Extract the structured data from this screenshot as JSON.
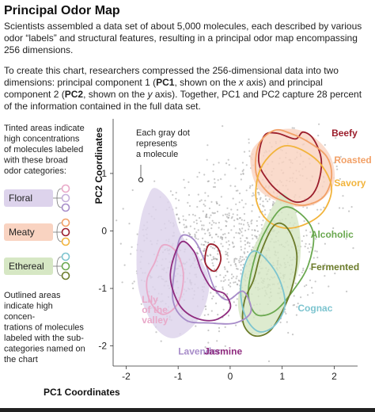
{
  "header": {
    "title": "Principal Odor Map",
    "intro": "Scientists assembled a data set of about 5,000 molecules, each described by various odor “labels” and structural features, resulting in a principal odor map encompassing 256 dimensions.",
    "desc_a": "To create this chart, researchers compressed the 256-dimensional data into two dimensions: principal component 1 (",
    "desc_b": "PC1",
    "desc_c": ", shown on the ",
    "desc_d": "x",
    "desc_e": " axis) and principal component 2 (",
    "desc_f": "PC2",
    "desc_g": ", shown on the ",
    "desc_h": "y",
    "desc_i": " axis). Together, PC1 and PC2 capture 28 percent of the information contained in the full data set."
  },
  "legend": {
    "tinted_note": [
      "Tinted areas indicate",
      "high concentrations",
      "of molecules labeled",
      "with these broad",
      "odor categories:"
    ],
    "outlined_note": [
      "Outlined areas",
      "indicate high",
      "concen-",
      "trations of molecules",
      "labeled with the sub-",
      "categories named on",
      "the chart"
    ],
    "categories": [
      {
        "name": "Floral",
        "color": "#ddd3ec",
        "sub_colors": [
          "#e9a9c9",
          "#c6b0dc",
          "#a78cc9"
        ]
      },
      {
        "name": "Meaty",
        "color": "#f9d3c1",
        "sub_colors": [
          "#f2a066",
          "#9b1d2b",
          "#f2b43c"
        ]
      },
      {
        "name": "Ethereal",
        "color": "#d6e7c4",
        "sub_colors": [
          "#7cc4cf",
          "#6aa84f",
          "#6b7b2a"
        ]
      }
    ]
  },
  "chart_data": {
    "type": "scatter",
    "xlabel": "PC1 Coordinates",
    "ylabel": "PC2 Coordinates",
    "xlim": [
      -2.25,
      2.45
    ],
    "ylim": [
      -2.35,
      1.95
    ],
    "x_ticks": [
      -2,
      -1,
      0,
      1,
      2
    ],
    "y_ticks": [
      -2,
      -1,
      0,
      1
    ],
    "points_note": "Each gray dot represents a molecule",
    "approx_molecule_count": 5000,
    "tinted_regions": [
      {
        "name": "Floral",
        "color": "#ddd3ec",
        "polygon": [
          [
            -1.45,
            0.75
          ],
          [
            -1.15,
            0.5
          ],
          [
            -0.95,
            -0.05
          ],
          [
            -0.6,
            -0.45
          ],
          [
            -0.4,
            -0.9
          ],
          [
            -0.55,
            -1.45
          ],
          [
            -0.9,
            -1.8
          ],
          [
            -1.2,
            -1.85
          ],
          [
            -1.5,
            -1.6
          ],
          [
            -1.75,
            -1.05
          ],
          [
            -1.8,
            -0.4
          ],
          [
            -1.72,
            0.2
          ],
          [
            -1.6,
            0.55
          ]
        ]
      },
      {
        "name": "Meaty",
        "color": "#f9d3c1",
        "polygon": [
          [
            0.45,
            1.45
          ],
          [
            0.9,
            1.75
          ],
          [
            1.45,
            1.72
          ],
          [
            1.9,
            1.35
          ],
          [
            2.0,
            0.85
          ],
          [
            1.7,
            0.5
          ],
          [
            1.3,
            0.42
          ],
          [
            0.9,
            0.52
          ],
          [
            0.55,
            0.72
          ],
          [
            0.4,
            1.1
          ]
        ]
      },
      {
        "name": "Ethereal",
        "color": "#d6e7c4",
        "polygon": [
          [
            1.05,
            0.65
          ],
          [
            1.3,
            0.2
          ],
          [
            1.35,
            -0.45
          ],
          [
            1.2,
            -1.0
          ],
          [
            0.95,
            -1.5
          ],
          [
            0.6,
            -1.8
          ],
          [
            0.3,
            -1.7
          ],
          [
            0.15,
            -1.25
          ],
          [
            0.3,
            -0.6
          ],
          [
            0.55,
            -0.1
          ],
          [
            0.8,
            0.4
          ]
        ]
      }
    ],
    "outlined_regions": [
      {
        "name": "Beefy",
        "category": "Meaty",
        "color": "#9b1d2b",
        "polygon": [
          [
            0.65,
            1.65
          ],
          [
            0.9,
            1.7
          ],
          [
            1.25,
            1.6
          ],
          [
            1.4,
            1.72
          ],
          [
            1.6,
            1.6
          ],
          [
            1.75,
            1.25
          ],
          [
            1.7,
            0.85
          ],
          [
            1.55,
            0.6
          ],
          [
            1.3,
            0.5
          ],
          [
            1.05,
            0.6
          ],
          [
            0.75,
            0.85
          ],
          [
            0.55,
            1.2
          ]
        ]
      },
      {
        "name": "Roasted",
        "category": "Meaty",
        "color": "#f2a066",
        "polygon": [
          [
            0.55,
            1.5
          ],
          [
            0.85,
            1.75
          ],
          [
            1.15,
            1.7
          ],
          [
            1.5,
            1.55
          ],
          [
            1.85,
            1.3
          ],
          [
            1.95,
            0.95
          ],
          [
            1.8,
            0.6
          ],
          [
            1.45,
            0.45
          ],
          [
            1.1,
            0.5
          ],
          [
            0.75,
            0.65
          ],
          [
            0.5,
            1.0
          ]
        ]
      },
      {
        "name": "Savory",
        "category": "Meaty",
        "color": "#f2b43c",
        "polygon": [
          [
            0.75,
            1.3
          ],
          [
            1.05,
            1.48
          ],
          [
            1.4,
            1.4
          ],
          [
            1.75,
            1.15
          ],
          [
            1.95,
            0.75
          ],
          [
            1.8,
            0.35
          ],
          [
            1.45,
            0.12
          ],
          [
            1.05,
            0.05
          ],
          [
            0.7,
            0.2
          ],
          [
            0.5,
            0.55
          ],
          [
            0.55,
            1.0
          ]
        ]
      },
      {
        "name": "Alcoholic",
        "category": "Ethereal",
        "color": "#6aa84f",
        "polygon": [
          [
            1.0,
            0.4
          ],
          [
            1.35,
            0.3
          ],
          [
            1.6,
            -0.05
          ],
          [
            1.5,
            -0.6
          ],
          [
            1.2,
            -1.05
          ],
          [
            0.85,
            -1.4
          ],
          [
            0.5,
            -1.45
          ],
          [
            0.35,
            -1.1
          ],
          [
            0.45,
            -0.55
          ],
          [
            0.65,
            -0.05
          ]
        ]
      },
      {
        "name": "Fermented",
        "category": "Ethereal",
        "color": "#6b7b2a",
        "polygon": [
          [
            0.85,
            0.1
          ],
          [
            1.1,
            0.05
          ],
          [
            1.28,
            -0.4
          ],
          [
            1.2,
            -0.95
          ],
          [
            1.0,
            -1.4
          ],
          [
            0.75,
            -1.75
          ],
          [
            0.45,
            -1.82
          ],
          [
            0.25,
            -1.6
          ],
          [
            0.28,
            -1.2
          ],
          [
            0.45,
            -0.85
          ],
          [
            0.6,
            -0.35
          ]
        ]
      },
      {
        "name": "Cognac",
        "category": "Ethereal",
        "color": "#7cc4cf",
        "polygon": [
          [
            0.45,
            -0.35
          ],
          [
            0.7,
            -0.5
          ],
          [
            0.95,
            -0.85
          ],
          [
            1.05,
            -1.3
          ],
          [
            0.85,
            -1.65
          ],
          [
            0.55,
            -1.75
          ],
          [
            0.3,
            -1.5
          ],
          [
            0.2,
            -1.05
          ],
          [
            0.28,
            -0.6
          ]
        ]
      },
      {
        "name": "Lily of the valley",
        "category": "Floral",
        "color": "#e9a9c9",
        "polygon": [
          [
            -1.45,
            -0.55
          ],
          [
            -1.3,
            -0.25
          ],
          [
            -1.05,
            -0.35
          ],
          [
            -0.9,
            -0.75
          ],
          [
            -1.0,
            -1.25
          ],
          [
            -1.3,
            -1.45
          ],
          [
            -1.55,
            -1.2
          ],
          [
            -1.6,
            -0.85
          ]
        ]
      },
      {
        "name": "Lavender",
        "category": "Floral",
        "color": "#a78cc9",
        "polygon": [
          [
            -0.95,
            -0.1
          ],
          [
            -0.7,
            -0.15
          ],
          [
            -0.5,
            -0.5
          ],
          [
            -0.3,
            -1.0
          ],
          [
            -0.05,
            -1.2
          ],
          [
            0.25,
            -1.05
          ],
          [
            0.4,
            -1.4
          ],
          [
            0.1,
            -1.6
          ],
          [
            -0.4,
            -1.6
          ],
          [
            -0.85,
            -1.55
          ],
          [
            -1.1,
            -1.2
          ],
          [
            -1.05,
            -0.55
          ]
        ]
      },
      {
        "name": "Jasmine",
        "category": "Floral",
        "color": "#8e2a7e",
        "polygon": [
          [
            -0.95,
            -0.2
          ],
          [
            -0.7,
            -0.35
          ],
          [
            -0.55,
            -0.7
          ],
          [
            -0.35,
            -1.0
          ],
          [
            -0.1,
            -1.1
          ],
          [
            0.0,
            -1.35
          ],
          [
            -0.3,
            -1.55
          ],
          [
            -0.7,
            -1.5
          ],
          [
            -1.0,
            -1.25
          ],
          [
            -1.15,
            -0.75
          ]
        ]
      },
      {
        "name": "",
        "category": "Meaty",
        "color": "#9b1d2b",
        "polygon": [
          [
            -0.42,
            -0.25
          ],
          [
            -0.25,
            -0.28
          ],
          [
            -0.18,
            -0.5
          ],
          [
            -0.3,
            -0.7
          ],
          [
            -0.48,
            -0.55
          ]
        ]
      }
    ],
    "labels": [
      {
        "text": "Beefy",
        "color": "#9b1d2b",
        "x": 1.95,
        "y": 1.65
      },
      {
        "text": "Roasted",
        "color": "#f2a066",
        "x": 2.0,
        "y": 1.18
      },
      {
        "text": "Savory",
        "color": "#f2b43c",
        "x": 2.0,
        "y": 0.78
      },
      {
        "text": "Alcoholic",
        "color": "#6aa84f",
        "x": 1.55,
        "y": -0.12
      },
      {
        "text": "Fermented",
        "color": "#6b7b2a",
        "x": 1.55,
        "y": -0.68
      },
      {
        "text": "Cognac",
        "color": "#7cc4cf",
        "x": 1.3,
        "y": -1.4
      },
      {
        "text": "Lily of the valley",
        "color": "#e9a9c9",
        "x": -1.7,
        "y": -1.25
      },
      {
        "text": "Lavender",
        "color": "#a78cc9",
        "x": -1.0,
        "y": -2.15
      },
      {
        "text": "Jasmine",
        "color": "#8e2a7e",
        "x": -0.5,
        "y": -2.15
      }
    ]
  }
}
